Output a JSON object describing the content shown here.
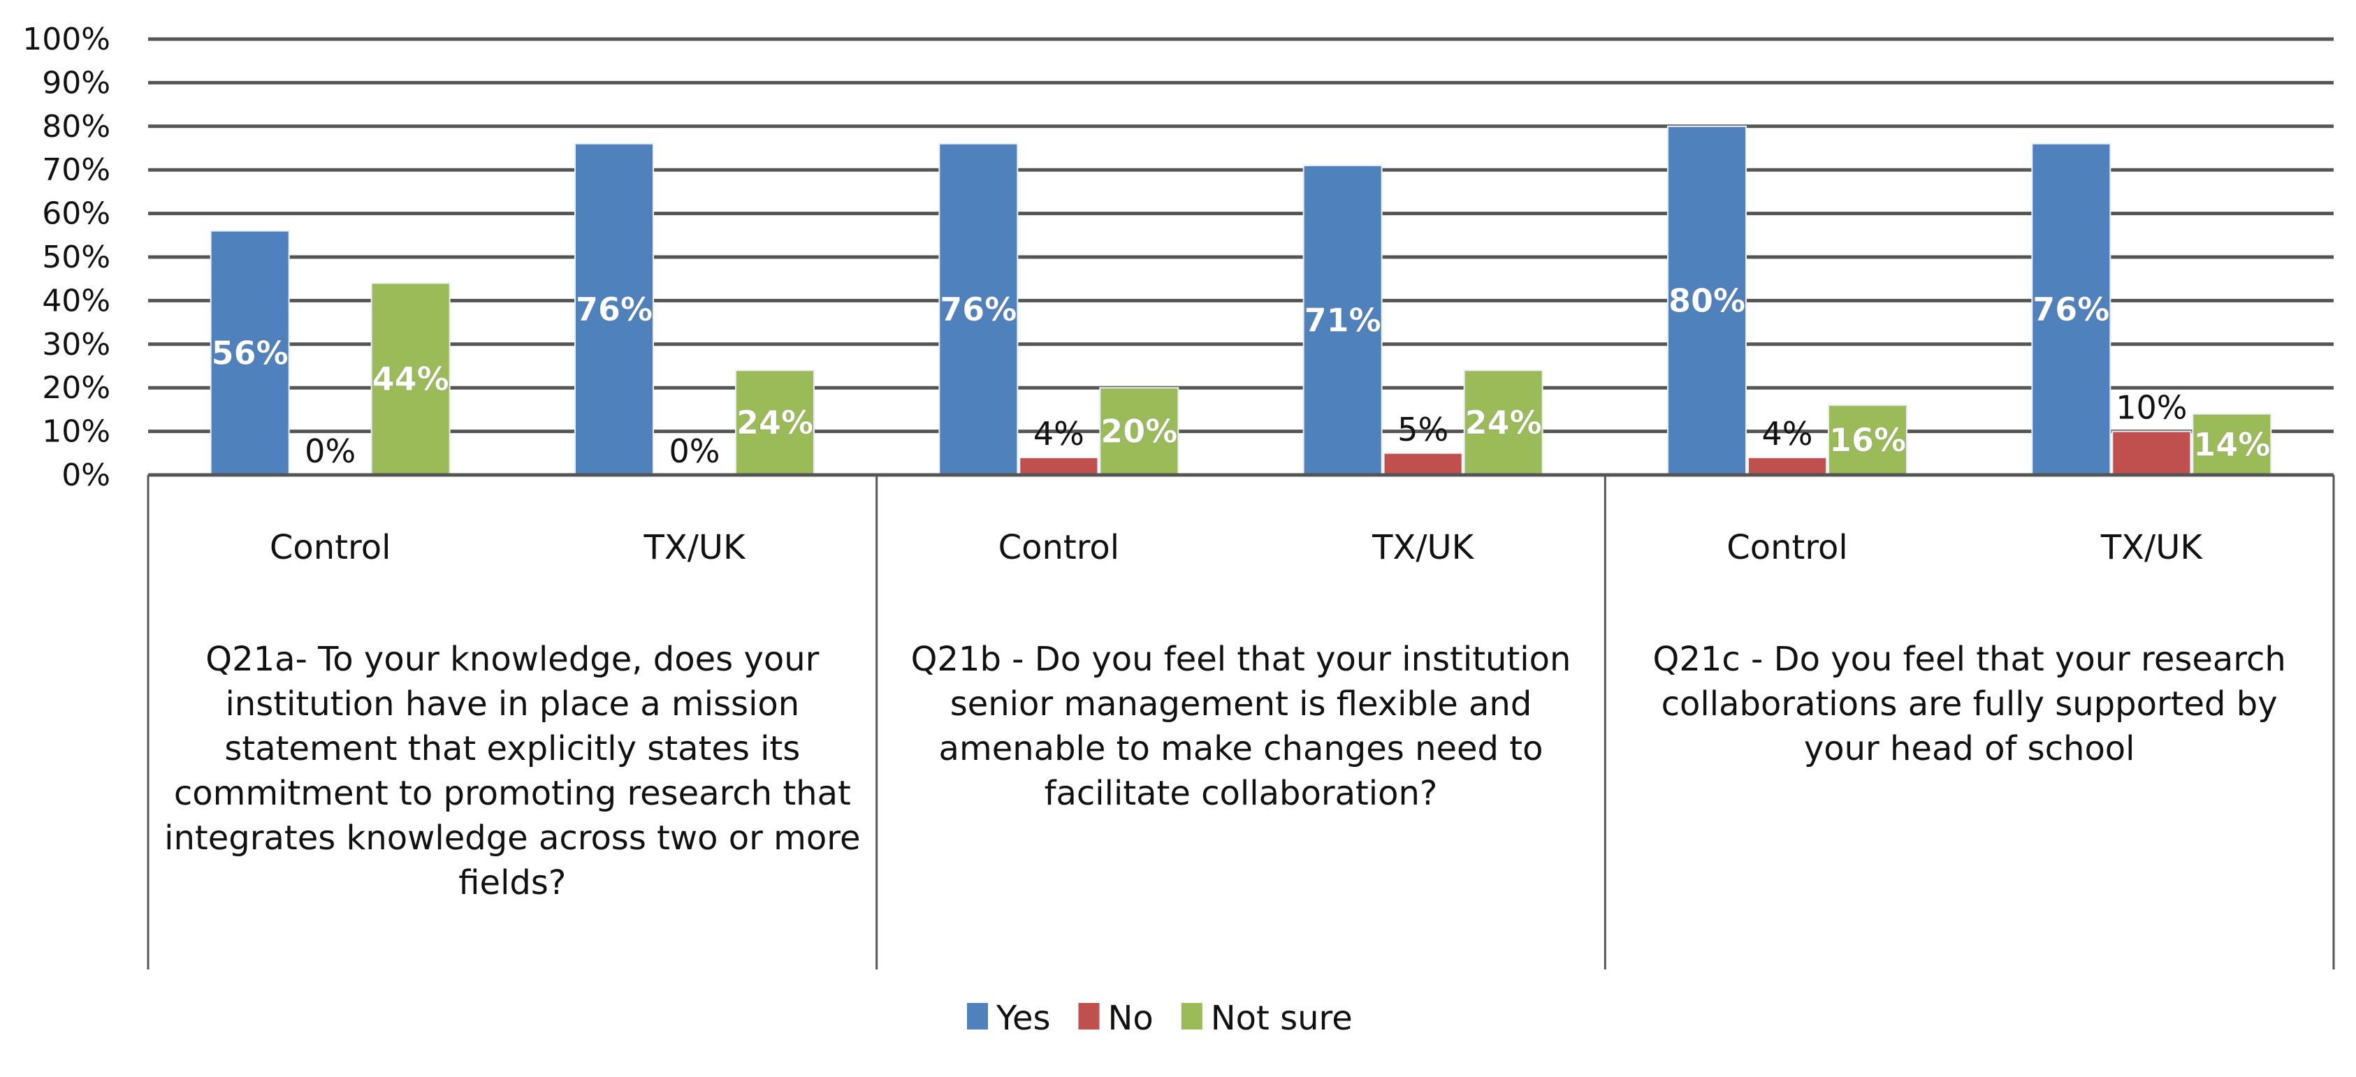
{
  "chart_data": {
    "type": "bar",
    "ylim": [
      0,
      100
    ],
    "y_ticks": [
      "0%",
      "10%",
      "20%",
      "30%",
      "40%",
      "50%",
      "60%",
      "70%",
      "80%",
      "90%",
      "100%"
    ],
    "grid": true,
    "legend_position": "bottom",
    "categories": [
      "Control",
      "TX/UK",
      "Control",
      "TX/UK",
      "Control",
      "TX/UK"
    ],
    "groups": [
      "Q21a- To your knowledge, does your institution have in place a mission statement that explicitly states its commitment to promoting research that integrates knowledge across two or more fields?",
      "Q21b - Do you feel that your institution senior management is flexible and amenable to make changes need to facilitate collaboration?",
      "Q21c - Do you feel that your research collaborations are fully supported by your head of school"
    ],
    "group_lines": [
      [
        "Q21a- To your knowledge, does your",
        "institution have in place a mission",
        "statement that explicitly states its",
        "commitment to promoting research that",
        "integrates knowledge across two or more",
        "fields?"
      ],
      [
        "Q21b - Do you feel that your institution",
        "senior management is flexible and",
        "amenable to make changes need to",
        "facilitate collaboration?"
      ],
      [
        "Q21c - Do you feel that your research",
        "collaborations are fully supported by",
        "your head of school"
      ]
    ],
    "series": [
      {
        "name": "Yes",
        "color": "#4F81BD",
        "values": [
          56,
          76,
          76,
          71,
          80,
          76
        ],
        "labels": [
          "56%",
          "76%",
          "76%",
          "71%",
          "80%",
          "76%"
        ]
      },
      {
        "name": "No",
        "color": "#C0504D",
        "values": [
          0,
          0,
          4,
          5,
          4,
          10
        ],
        "labels": [
          "0%",
          "0%",
          "4%",
          "5%",
          "4%",
          "10%"
        ]
      },
      {
        "name": "Not sure",
        "color": "#9BBB59",
        "values": [
          44,
          24,
          20,
          24,
          16,
          14
        ],
        "labels": [
          "44%",
          "24%",
          "20%",
          "24%",
          "16%",
          "14%"
        ]
      }
    ]
  }
}
